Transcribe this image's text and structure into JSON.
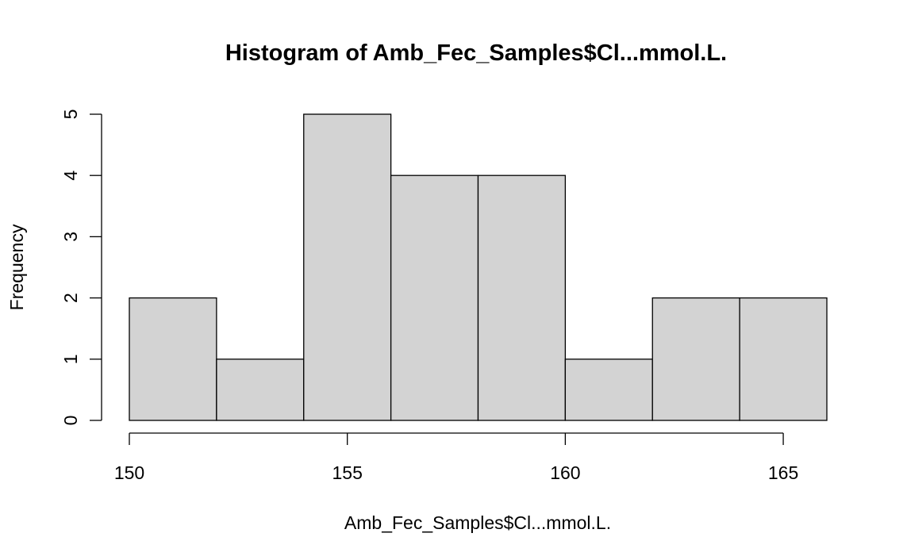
{
  "chart_data": {
    "type": "bar",
    "title": "Histogram of Amb_Fec_Samples$Cl...mmol.L.",
    "xlabel": "Amb_Fec_Samples$Cl...mmol.L.",
    "ylabel": "Frequency",
    "bins": [
      {
        "start": 150,
        "end": 152,
        "count": 2
      },
      {
        "start": 152,
        "end": 154,
        "count": 1
      },
      {
        "start": 154,
        "end": 156,
        "count": 5
      },
      {
        "start": 156,
        "end": 158,
        "count": 4
      },
      {
        "start": 158,
        "end": 160,
        "count": 4
      },
      {
        "start": 160,
        "end": 162,
        "count": 1
      },
      {
        "start": 162,
        "end": 164,
        "count": 2
      },
      {
        "start": 164,
        "end": 166,
        "count": 2
      }
    ],
    "xlim": [
      150,
      166
    ],
    "ylim": [
      0,
      5
    ],
    "x_ticks": [
      150,
      155,
      160,
      165
    ],
    "y_ticks": [
      0,
      1,
      2,
      3,
      4,
      5
    ],
    "grid": false,
    "bar_color": "#d3d3d3",
    "border_color": "#000000"
  }
}
